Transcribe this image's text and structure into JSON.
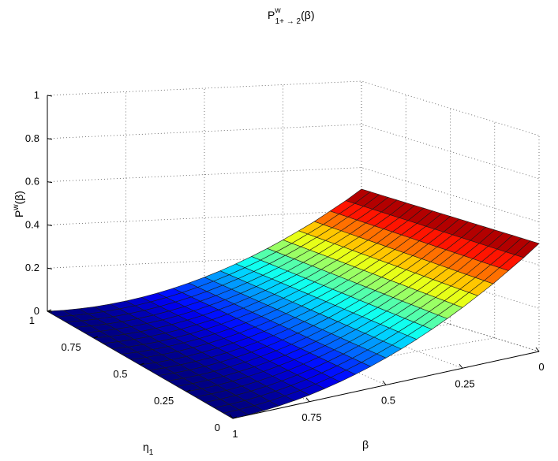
{
  "chart_data": {
    "type": "surface",
    "title": {
      "main": "P",
      "sup": "w",
      "sub": "1+ → 2",
      "suffix": "(β)"
    },
    "xlabel": "β",
    "ylabel": {
      "main": "η",
      "sub": "1"
    },
    "zlabel": {
      "main": "P",
      "sup": "w",
      "suffix": "(β)"
    },
    "beta_ticks": [
      "0",
      "0.25",
      "0.5",
      "0.75",
      "1"
    ],
    "eta_ticks": [
      "0",
      "0.25",
      "0.5",
      "0.75",
      "1"
    ],
    "z_ticks": [
      "0",
      "0.2",
      "0.4",
      "0.6",
      "0.8",
      "1"
    ],
    "beta_range": [
      0,
      1
    ],
    "eta_range": [
      0,
      1
    ],
    "z_range": [
      0,
      1
    ],
    "grid": true,
    "colormap": "jet",
    "beta": [
      0,
      0.05,
      0.1,
      0.15,
      0.2,
      0.25,
      0.3,
      0.35,
      0.4,
      0.45,
      0.5,
      0.55,
      0.6,
      0.65,
      0.7,
      0.75,
      0.8,
      0.85,
      0.9,
      0.95,
      1
    ],
    "eta": [
      0,
      0.05,
      0.1,
      0.15,
      0.2,
      0.25,
      0.3,
      0.35,
      0.4,
      0.45,
      0.5,
      0.55,
      0.6,
      0.65,
      0.7,
      0.75,
      0.8,
      0.85,
      0.9,
      0.95,
      1
    ],
    "z_of_beta": [
      0.5,
      0.45,
      0.405,
      0.36,
      0.32,
      0.281,
      0.245,
      0.211,
      0.18,
      0.151,
      0.125,
      0.101,
      0.08,
      0.061,
      0.045,
      0.031,
      0.02,
      0.011,
      0.005,
      0.001,
      0.0
    ],
    "z_depends_on_eta": false
  }
}
